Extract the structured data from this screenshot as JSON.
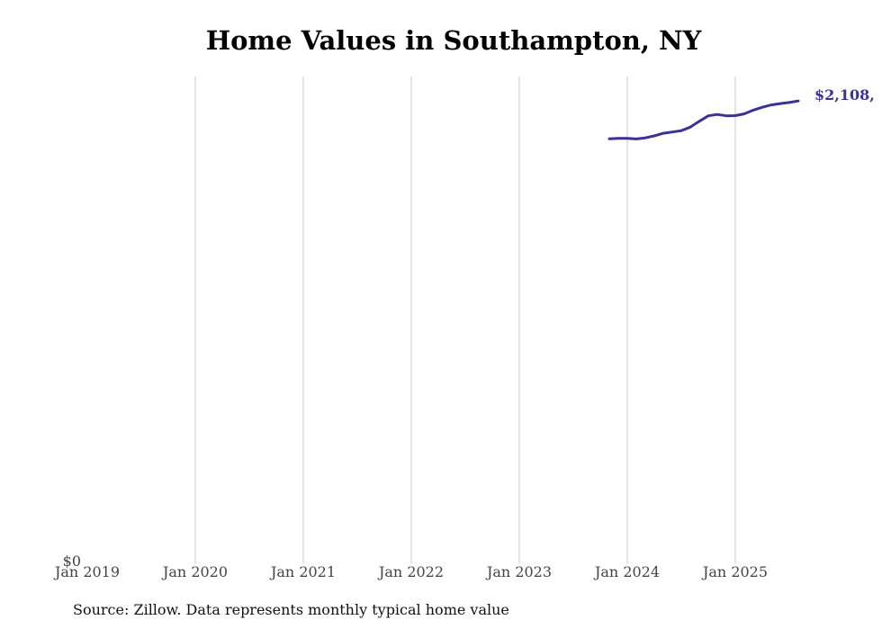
{
  "colors": {
    "line": "#3a3394",
    "grid": "#c8c8c8",
    "text": "#111111",
    "axis_text": "#444444"
  },
  "source_note": "Source: Zillow. Data represents monthly typical home value",
  "chart_data": {
    "type": "line",
    "title": "Home Values in Southampton, NY",
    "xlabel": "",
    "ylabel": "",
    "grid": "vertical",
    "xlim": [
      "2019-01",
      "2025-09"
    ],
    "ylim": [
      0,
      2220000
    ],
    "x_ticks": [
      "Jan 2019",
      "Jan 2020",
      "Jan 2021",
      "Jan 2022",
      "Jan 2023",
      "Jan 2024",
      "Jan 2025"
    ],
    "y_ticks": [
      "$0"
    ],
    "end_label": "$2,108,",
    "series": [
      {
        "x": [
          "2023-11",
          "2023-12",
          "2024-01",
          "2024-02",
          "2024-03",
          "2024-04",
          "2024-05",
          "2024-06",
          "2024-07",
          "2024-08",
          "2024-09",
          "2024-10",
          "2024-11",
          "2024-12",
          "2025-01",
          "2025-02",
          "2025-03",
          "2025-04",
          "2025-05",
          "2025-06",
          "2025-07",
          "2025-08"
        ],
        "values": [
          1935000,
          1937000,
          1937000,
          1934000,
          1939000,
          1948000,
          1960000,
          1966000,
          1972000,
          1988000,
          2015000,
          2040000,
          2046000,
          2040000,
          2041000,
          2049000,
          2066000,
          2079000,
          2090000,
          2096000,
          2101000,
          2108000
        ]
      }
    ]
  }
}
